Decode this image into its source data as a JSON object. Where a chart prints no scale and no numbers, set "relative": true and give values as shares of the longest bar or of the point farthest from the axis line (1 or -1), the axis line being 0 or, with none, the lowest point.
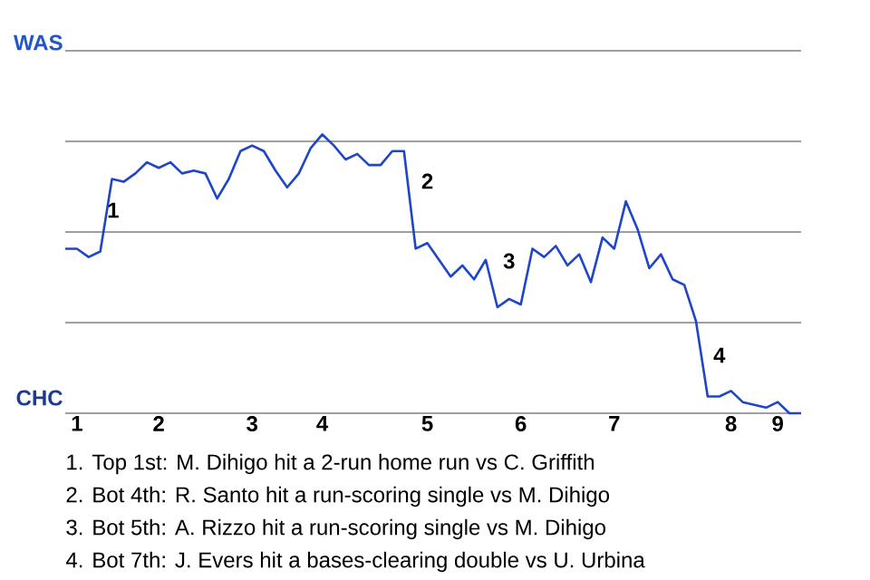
{
  "chart_data": {
    "type": "line",
    "relative": true,
    "categories": [
      null,
      "1",
      null,
      null,
      null,
      null,
      null,
      null,
      "2",
      null,
      null,
      null,
      null,
      null,
      null,
      null,
      "3",
      null,
      null,
      null,
      null,
      null,
      "4",
      null,
      null,
      null,
      null,
      null,
      null,
      null,
      null,
      "5",
      null,
      null,
      null,
      null,
      null,
      null,
      null,
      "6",
      null,
      null,
      null,
      null,
      null,
      null,
      null,
      "7",
      null,
      null,
      null,
      null,
      null,
      null,
      null,
      null,
      null,
      "8",
      null,
      null,
      null,
      "9",
      null,
      null
    ],
    "grid": "y",
    "line_style": "solid",
    "series": [
      {
        "color": "#1f45c8",
        "values": [
          0.59,
          0.59,
          0.56,
          0.58,
          0.84,
          0.83,
          0.86,
          0.9,
          0.88,
          0.9,
          0.86,
          0.87,
          0.86,
          0.77,
          0.84,
          0.94,
          0.96,
          0.94,
          0.87,
          0.81,
          0.86,
          0.95,
          1,
          0.96,
          0.91,
          0.93,
          0.89,
          0.89,
          0.94,
          0.94,
          0.59,
          0.61,
          0.55,
          0.49,
          0.53,
          0.48,
          0.55,
          0.38,
          0.41,
          0.39,
          0.59,
          0.56,
          0.6,
          0.53,
          0.57,
          0.47,
          0.63,
          0.59,
          0.76,
          0.66,
          0.52,
          0.57,
          0.48,
          0.46,
          0.33,
          0.06,
          0.06,
          0.08,
          0.04,
          0.03,
          0.02,
          0.04,
          0.0,
          0
        ]
      }
    ],
    "annotations": [
      "WAS",
      "CHC",
      "1",
      "2",
      "3",
      "4",
      "1. Top 1st: M. Dihigo hit a 2-run home run vs C. Griffith",
      "2. Bot 4th: R. Santo hit a run-scoring single vs M. Dihigo",
      "3. Bot 5th: A. Rizzo hit a run-scoring single vs M. Dihigo",
      "4. Bot 7th: J. Evers hit a bases-clearing double vs U. Urbina"
    ]
  }
}
